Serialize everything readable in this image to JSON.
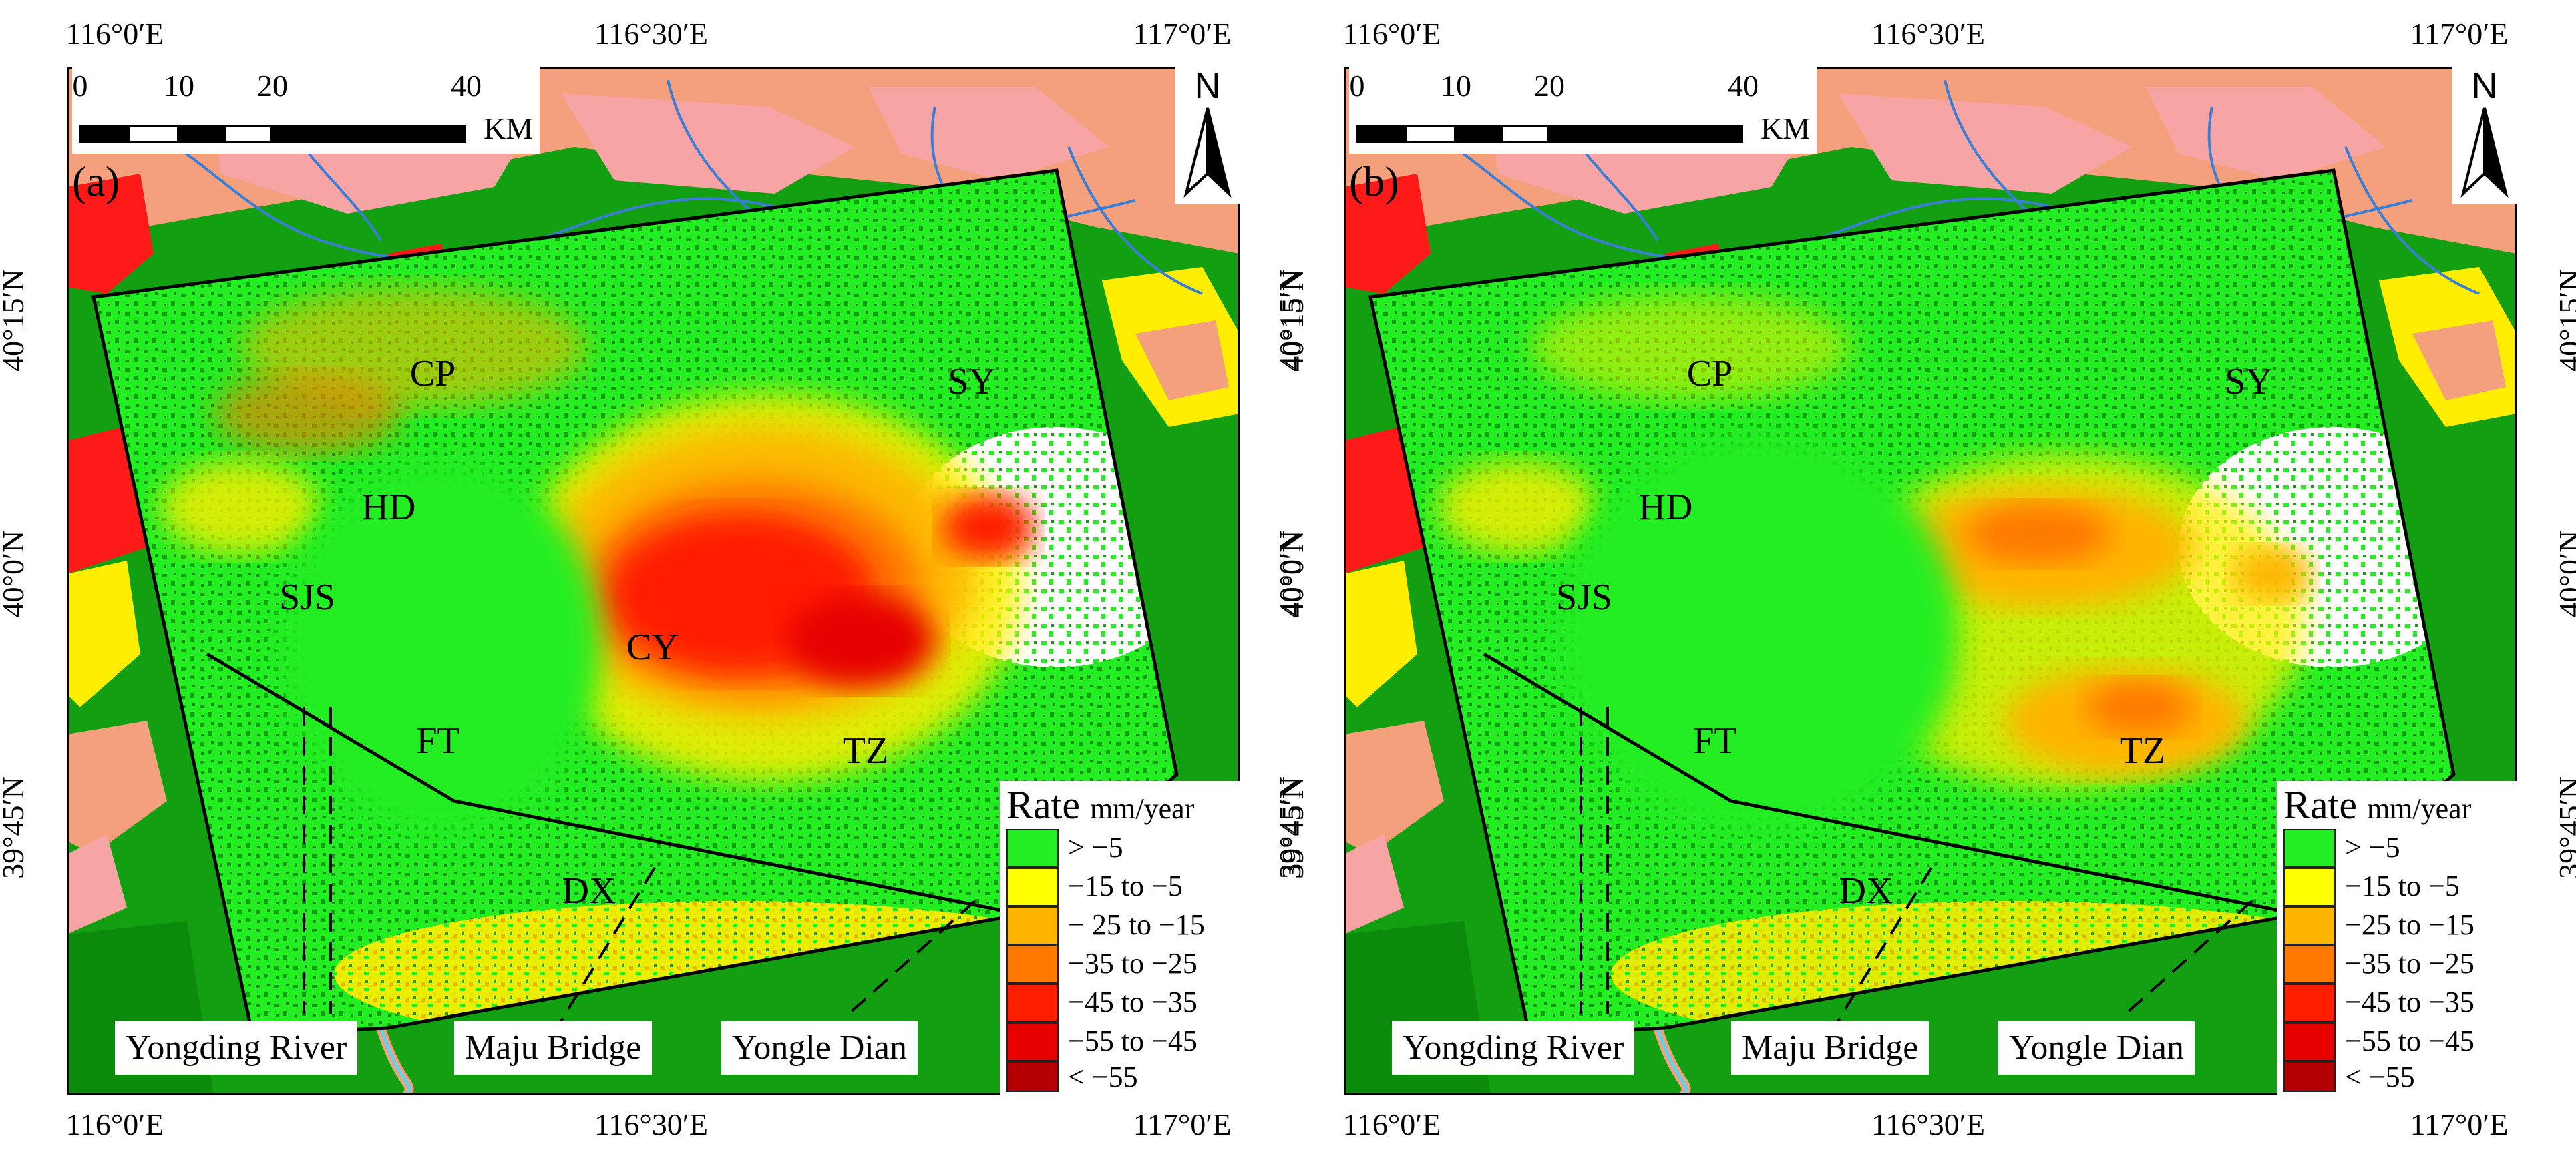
{
  "axes": {
    "top_ticks": [
      "116°0′E",
      "116°30′E",
      "117°0′E"
    ],
    "bottom_ticks": [
      "116°0′E",
      "116°30′E",
      "117°0′E"
    ],
    "left_ticks": [
      "40°15′N",
      "40°0′N",
      "39°45′N"
    ],
    "right_ticks": [
      "40°15′N",
      "40°0′N",
      "39°45′N"
    ]
  },
  "scale_bar": {
    "ticks": [
      "0",
      "10",
      "20",
      "40"
    ],
    "unit": "KM"
  },
  "north_arrow": {
    "label": "N"
  },
  "districts": [
    "CP",
    "SY",
    "HD",
    "SJS",
    "CY",
    "FT",
    "TZ",
    "DX"
  ],
  "places": [
    "Yongding River",
    "Maju Bridge",
    "Yongle Dian"
  ],
  "legend": {
    "title": "Rate",
    "unit": "mm/year",
    "panel_a_items": [
      {
        "label": "> −5",
        "color": "#22ee22"
      },
      {
        "label": "−15 to −5",
        "color": "#ffff00"
      },
      {
        "label": "− 25 to −15",
        "color": "#ffb400"
      },
      {
        "label": "−35 to −25",
        "color": "#ff7800"
      },
      {
        "label": "−45 to −35",
        "color": "#ff1e00"
      },
      {
        "label": "−55 to −45",
        "color": "#e60000"
      },
      {
        "label": "< −55",
        "color": "#b40000"
      }
    ],
    "panel_b_items": [
      {
        "label": "> −5",
        "color": "#22ee22"
      },
      {
        "label": "−15 to −5",
        "color": "#ffff00"
      },
      {
        "label": "−25 to −15",
        "color": "#ffb400"
      },
      {
        "label": "−35 to −25",
        "color": "#ff7800"
      },
      {
        "label": "−45 to −35",
        "color": "#ff1e00"
      },
      {
        "label": "−55 to −45",
        "color": "#e60000"
      },
      {
        "label": "< −55",
        "color": "#b40000"
      }
    ]
  },
  "panels": [
    {
      "label": "(a)",
      "subsidence": "strong"
    },
    {
      "label": "(b)",
      "subsidence": "moderate"
    }
  ],
  "colors": {
    "base_green": "#12a012",
    "deep_green": "#0c8a0c",
    "salmon": "#f4a07c",
    "pink": "#f6a4a4",
    "bright_red": "#ff1a1a",
    "yellow": "#ffee00",
    "river_blue": "#3a7fd5",
    "water": "#5ed2ee"
  }
}
